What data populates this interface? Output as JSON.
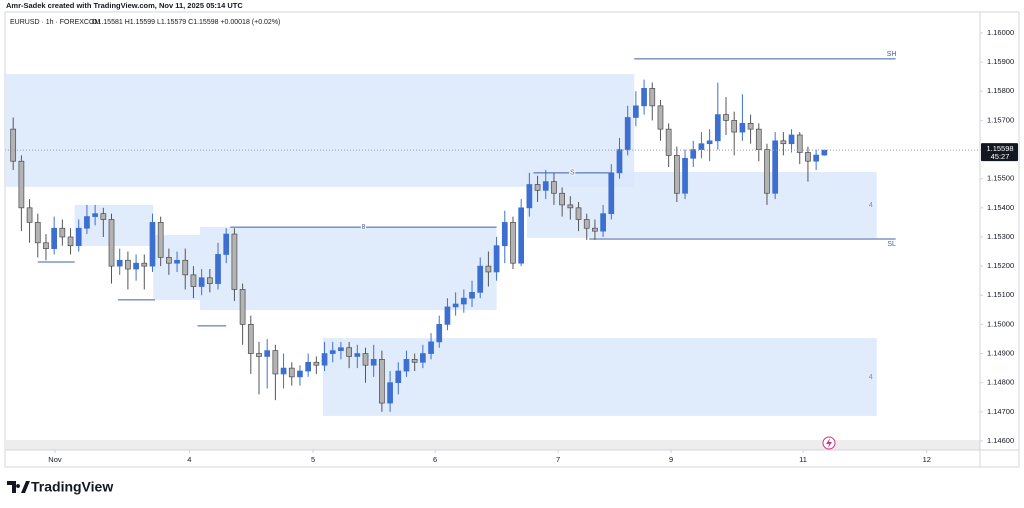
{
  "header": {
    "credit": "Amr-Sadek created with TradingView.com, Nov 11, 2025 05:14 UTC",
    "symbol": "EURUSD · 1h · FOREXCOM",
    "ohlc": "O1.15581 H1.15599 L1.15579 C1.15598 +0.00018 (+0.02%)"
  },
  "footer": {
    "logo": "TradingView"
  },
  "chart_data": {
    "type": "candlestick",
    "up_color": "#3d6fd1",
    "down_color": "#b3b3b3",
    "zone_color": "#dbe7fb",
    "line_color": "#3d5fae",
    "grid": false,
    "countdown": "45:27",
    "open": [
      1.1567,
      1.1556,
      1.154,
      1.1535,
      1.1528,
      1.1526,
      1.1533,
      1.153,
      1.1527,
      1.1533,
      1.1537,
      1.1538,
      1.1536,
      1.152,
      1.1522,
      1.1519,
      1.1521,
      1.152,
      1.1535,
      1.1523,
      1.1521,
      1.1522,
      1.1517,
      1.1513,
      1.1516,
      1.1514,
      1.1524,
      1.1531,
      1.1512,
      1.15,
      1.149,
      1.1489,
      1.1491,
      1.1483,
      1.1485,
      1.1482,
      1.1484,
      1.1487,
      1.1486,
      1.149,
      1.1491,
      1.1492,
      1.1489,
      1.149,
      1.1486,
      1.1488,
      1.1473,
      1.148,
      1.1484,
      1.1488,
      1.1487,
      1.149,
      1.1494,
      1.15,
      1.1506,
      1.1507,
      1.1509,
      1.1511,
      1.152,
      1.1518,
      1.1527,
      1.1535,
      1.1521,
      1.154,
      1.1548,
      1.1546,
      1.1549,
      1.1545,
      1.1541,
      1.154,
      1.1536,
      1.1533,
      1.1532,
      1.1538,
      1.1552,
      1.156,
      1.1571,
      1.1575,
      1.1581,
      1.1575,
      1.1567,
      1.1558,
      1.1545,
      1.1557,
      1.156,
      1.1562,
      1.1563,
      1.1572,
      1.157,
      1.1566,
      1.1569,
      1.1567,
      1.156,
      1.1545,
      1.1563,
      1.1562,
      1.1565,
      1.1559,
      1.1556,
      1.15581
    ],
    "high": [
      1.1571,
      1.1558,
      1.1543,
      1.1538,
      1.1531,
      1.1537,
      1.1536,
      1.1533,
      1.1536,
      1.1541,
      1.1541,
      1.154,
      1.1538,
      1.1526,
      1.1525,
      1.1524,
      1.1524,
      1.1538,
      1.1537,
      1.1526,
      1.1525,
      1.1526,
      1.152,
      1.1519,
      1.1519,
      1.1528,
      1.1533,
      1.1533,
      1.1514,
      1.1503,
      1.1494,
      1.1495,
      1.1493,
      1.149,
      1.1487,
      1.1486,
      1.149,
      1.1489,
      1.1494,
      1.1494,
      1.1494,
      1.1494,
      1.1493,
      1.1492,
      1.1493,
      1.1491,
      1.1484,
      1.1487,
      1.1491,
      1.149,
      1.1493,
      1.1497,
      1.1503,
      1.1509,
      1.1511,
      1.1512,
      1.1515,
      1.1523,
      1.1525,
      1.153,
      1.1539,
      1.1537,
      1.1543,
      1.1552,
      1.1551,
      1.1553,
      1.1552,
      1.1547,
      1.1544,
      1.1542,
      1.1538,
      1.1536,
      1.1541,
      1.1555,
      1.1564,
      1.1575,
      1.158,
      1.1584,
      1.1583,
      1.1577,
      1.1569,
      1.1561,
      1.156,
      1.1563,
      1.1566,
      1.1567,
      1.1583,
      1.1578,
      1.1573,
      1.1579,
      1.1572,
      1.1569,
      1.1562,
      1.1566,
      1.1566,
      1.1567,
      1.1566,
      1.1561,
      1.156,
      1.15599
    ],
    "low": [
      1.1553,
      1.1532,
      1.1528,
      1.1523,
      1.1522,
      1.1524,
      1.1527,
      1.1524,
      1.1525,
      1.1531,
      1.1534,
      1.153,
      1.1514,
      1.1517,
      1.1512,
      1.1515,
      1.1512,
      1.1518,
      1.152,
      1.1517,
      1.1518,
      1.1512,
      1.1509,
      1.151,
      1.1511,
      1.1512,
      1.1521,
      1.1508,
      1.1493,
      1.1483,
      1.1476,
      1.1478,
      1.1474,
      1.1478,
      1.1479,
      1.1479,
      1.1482,
      1.1483,
      1.1484,
      1.1487,
      1.1488,
      1.1485,
      1.1485,
      1.148,
      1.1482,
      1.147,
      1.147,
      1.1476,
      1.1482,
      1.1484,
      1.1485,
      1.1488,
      1.1492,
      1.1498,
      1.1503,
      1.1504,
      1.1506,
      1.1509,
      1.1513,
      1.1515,
      1.1521,
      1.1519,
      1.152,
      1.1537,
      1.1542,
      1.1543,
      1.1541,
      1.1537,
      1.1536,
      1.1532,
      1.1529,
      1.1529,
      1.153,
      1.1536,
      1.155,
      1.1558,
      1.1568,
      1.1572,
      1.157,
      1.1563,
      1.1554,
      1.1542,
      1.1543,
      1.1554,
      1.1557,
      1.1556,
      1.156,
      1.1565,
      1.1558,
      1.1563,
      1.1562,
      1.1556,
      1.1541,
      1.1543,
      1.1558,
      1.1559,
      1.1555,
      1.1549,
      1.1553,
      1.15579
    ],
    "close": [
      1.1556,
      1.154,
      1.1535,
      1.1528,
      1.1526,
      1.1533,
      1.153,
      1.1527,
      1.1533,
      1.1537,
      1.1538,
      1.1536,
      1.152,
      1.1522,
      1.1519,
      1.1521,
      1.152,
      1.1535,
      1.1523,
      1.1521,
      1.1522,
      1.1517,
      1.1513,
      1.1516,
      1.1514,
      1.1524,
      1.1531,
      1.1512,
      1.15,
      1.149,
      1.1489,
      1.1491,
      1.1483,
      1.1485,
      1.1482,
      1.1484,
      1.1487,
      1.1486,
      1.149,
      1.1491,
      1.1492,
      1.1489,
      1.149,
      1.1486,
      1.1488,
      1.1473,
      1.148,
      1.1484,
      1.1488,
      1.1487,
      1.149,
      1.1494,
      1.15,
      1.1506,
      1.1507,
      1.1509,
      1.1511,
      1.152,
      1.1518,
      1.1527,
      1.1535,
      1.1521,
      1.154,
      1.1548,
      1.1546,
      1.1549,
      1.1545,
      1.1541,
      1.154,
      1.1536,
      1.1533,
      1.1532,
      1.1538,
      1.1552,
      1.156,
      1.1571,
      1.1575,
      1.1581,
      1.1575,
      1.1567,
      1.1558,
      1.1545,
      1.1557,
      1.156,
      1.1562,
      1.1563,
      1.1572,
      1.157,
      1.1566,
      1.1569,
      1.1567,
      1.156,
      1.1545,
      1.1563,
      1.1562,
      1.1565,
      1.1559,
      1.1556,
      1.15581,
      1.15598
    ],
    "xlim": [
      -1,
      118
    ],
    "xticks": [
      {
        "value": 5.1,
        "label": "Nov"
      },
      {
        "value": 21.5,
        "label": "4"
      },
      {
        "value": 36.6,
        "label": "5"
      },
      {
        "value": 51.5,
        "label": "6"
      },
      {
        "value": 66.5,
        "label": "7"
      },
      {
        "value": 80.3,
        "label": "9"
      },
      {
        "value": 96.4,
        "label": "11"
      },
      {
        "value": 111.5,
        "label": "12"
      }
    ],
    "ylim": [
      1.14569,
      1.16072
    ],
    "yticks": [
      {
        "value": 1.146,
        "label": "1.14600"
      },
      {
        "value": 1.147,
        "label": "1.14700"
      },
      {
        "value": 1.148,
        "label": "1.14800"
      },
      {
        "value": 1.149,
        "label": "1.14900"
      },
      {
        "value": 1.15,
        "label": "1.15000"
      },
      {
        "value": 1.151,
        "label": "1.15100"
      },
      {
        "value": 1.152,
        "label": "1.15200"
      },
      {
        "value": 1.153,
        "label": "1.15300"
      },
      {
        "value": 1.154,
        "label": "1.15400"
      },
      {
        "value": 1.155,
        "label": "1.15500"
      },
      {
        "value": 1.156,
        "label": "1.15600"
      },
      {
        "value": 1.157,
        "label": "1.15700"
      },
      {
        "value": 1.158,
        "label": "1.15800"
      },
      {
        "value": 1.159,
        "label": "1.15900"
      },
      {
        "value": 1.16,
        "label": "1.16000"
      }
    ],
    "zones": [
      {
        "x": [
          -1,
          75.8
        ],
        "y": [
          1.15472,
          1.15859
        ]
      },
      {
        "x": [
          7.5,
          17.1
        ],
        "y": [
          1.15269,
          1.1541
        ]
      },
      {
        "x": [
          17.1,
          22.8
        ],
        "y": [
          1.15084,
          1.15307
        ]
      },
      {
        "x": [
          22.8,
          59.0
        ],
        "y": [
          1.15049,
          1.15334
        ]
      },
      {
        "x": [
          62.7,
          105.4
        ],
        "y": [
          1.15297,
          1.15523
        ],
        "label": "4"
      },
      {
        "x": [
          37.8,
          105.4
        ],
        "y": [
          1.14686,
          1.14953
        ],
        "label": "4"
      }
    ],
    "levels": [
      {
        "x": [
          75.8,
          107.7
        ],
        "y": 1.15911,
        "label": "SH"
      },
      {
        "x": [
          70.3,
          107.7
        ],
        "y": 1.15293,
        "label": "SL"
      },
      {
        "x": [
          26.5,
          59.0
        ],
        "y": 1.15334,
        "label": "8"
      },
      {
        "x": [
          63.5,
          73.0
        ],
        "y": 1.1552,
        "label": "S"
      },
      {
        "x": [
          3.0,
          7.5
        ],
        "y": 1.15214
      },
      {
        "x": [
          12.8,
          17.3
        ],
        "y": 1.15084
      },
      {
        "x": [
          22.5,
          26.0
        ],
        "y": 1.14995
      }
    ]
  }
}
